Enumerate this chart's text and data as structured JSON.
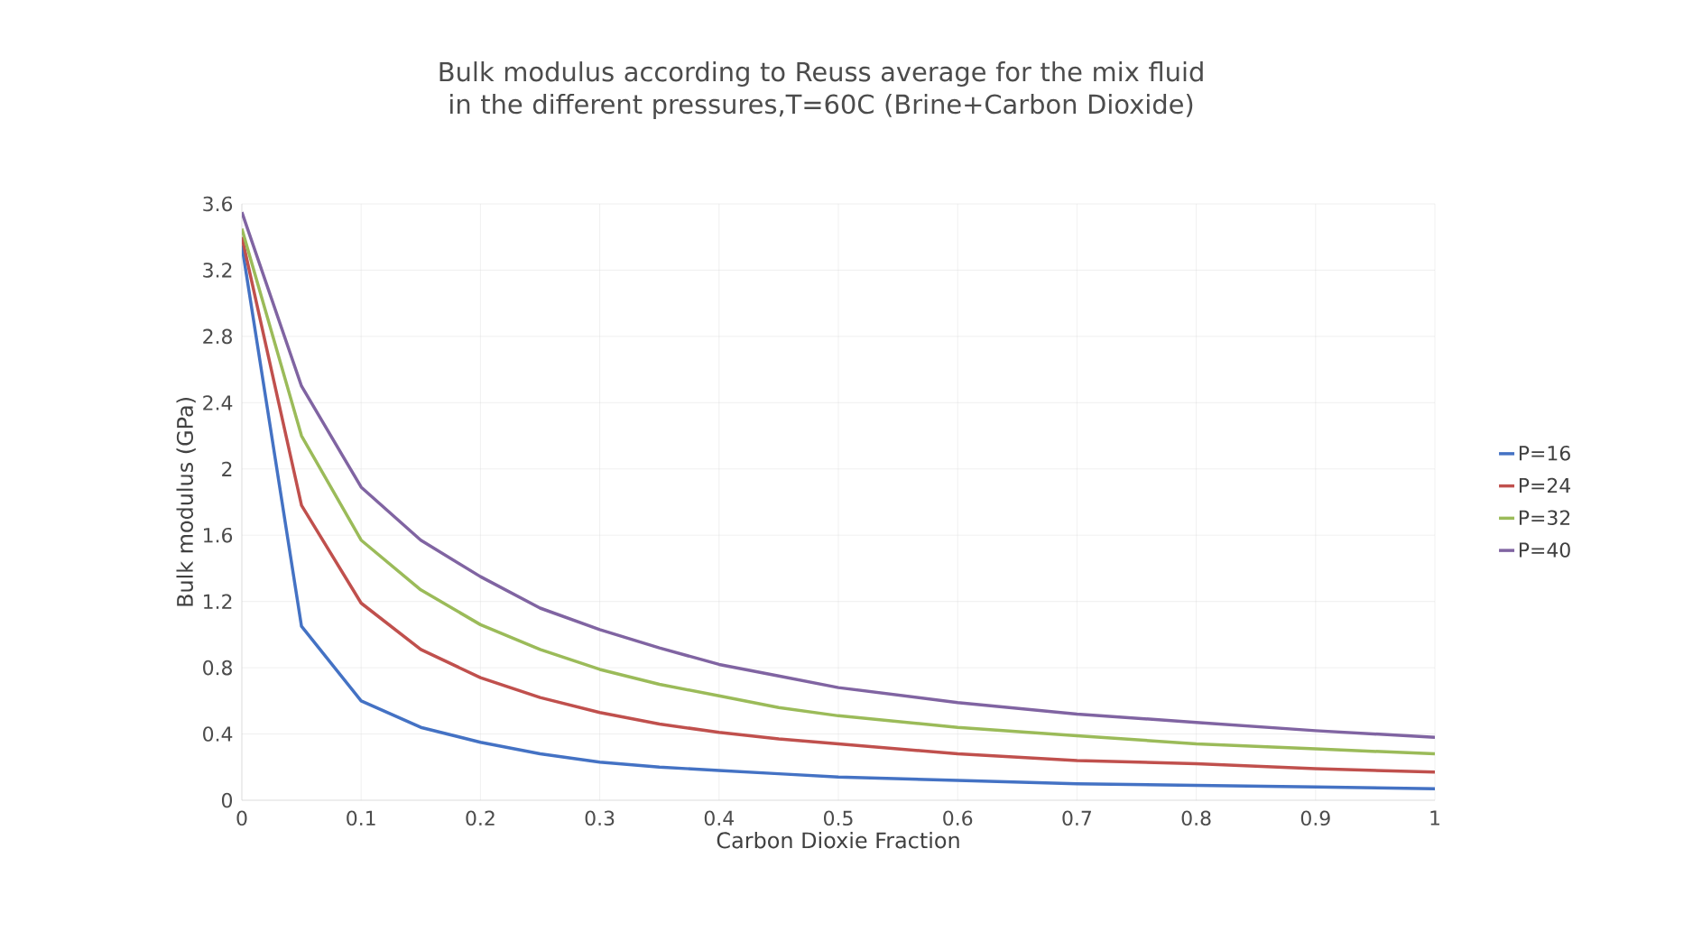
{
  "chart_data": {
    "type": "line",
    "title": "Bulk modulus according to Reuss average for the mix fluid in the different pressures,T=60C (Brine+Carbon Dioxide)",
    "xlabel": "Carbon Dioxie Fraction",
    "ylabel": "Bulk modulus (GPa)",
    "x": [
      0,
      0.05,
      0.1,
      0.15,
      0.2,
      0.25,
      0.3,
      0.35,
      0.4,
      0.45,
      0.5,
      0.6,
      0.7,
      0.8,
      0.9,
      1
    ],
    "series": [
      {
        "name": "P=16",
        "color": "#4472c4",
        "values": [
          3.35,
          1.05,
          0.6,
          0.44,
          0.35,
          0.28,
          0.23,
          0.2,
          0.18,
          0.16,
          0.14,
          0.12,
          0.1,
          0.09,
          0.08,
          0.07
        ]
      },
      {
        "name": "P=24",
        "color": "#c0504d",
        "values": [
          3.4,
          1.78,
          1.19,
          0.91,
          0.74,
          0.62,
          0.53,
          0.46,
          0.41,
          0.37,
          0.34,
          0.28,
          0.24,
          0.22,
          0.19,
          0.17
        ]
      },
      {
        "name": "P=32",
        "color": "#9bbb59",
        "values": [
          3.45,
          2.2,
          1.57,
          1.27,
          1.06,
          0.91,
          0.79,
          0.7,
          0.63,
          0.56,
          0.51,
          0.44,
          0.39,
          0.34,
          0.31,
          0.28
        ]
      },
      {
        "name": "P=40",
        "color": "#8064a2",
        "values": [
          3.55,
          2.5,
          1.89,
          1.57,
          1.35,
          1.16,
          1.03,
          0.92,
          0.82,
          0.75,
          0.68,
          0.59,
          0.52,
          0.47,
          0.42,
          0.38
        ]
      }
    ],
    "xlim": [
      0,
      1
    ],
    "xticks": [
      0,
      0.1,
      0.2,
      0.3,
      0.4,
      0.5,
      0.6,
      0.7,
      0.8,
      0.9,
      1
    ],
    "ylim": [
      0,
      3.6
    ],
    "yticks": [
      0,
      0.4,
      0.8,
      1.2,
      1.6,
      2,
      2.4,
      2.8,
      3.2,
      3.6
    ],
    "grid": true,
    "legend": "right",
    "marker": "none",
    "line_style": "solid"
  }
}
